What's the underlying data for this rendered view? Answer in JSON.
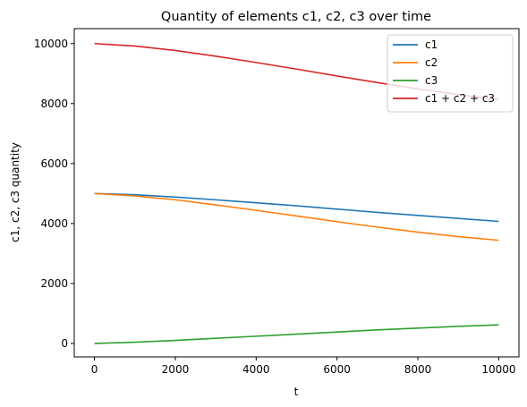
{
  "chart_data": {
    "type": "line",
    "title": "Quantity of elements c1, c2, c3 over time",
    "xlabel": "t",
    "ylabel": "c1, c2, c3 quantity",
    "xlim": [
      -500,
      10500
    ],
    "ylim": [
      -450,
      10500
    ],
    "xticks": [
      0,
      2000,
      4000,
      6000,
      8000,
      10000
    ],
    "yticks": [
      0,
      2000,
      4000,
      6000,
      8000,
      10000
    ],
    "grid": false,
    "legend_position": "top-right",
    "x": [
      0,
      1000,
      2000,
      3000,
      4000,
      5000,
      6000,
      7000,
      8000,
      9000,
      10000
    ],
    "series": [
      {
        "name": "c1",
        "color": "#1f77b4",
        "values": [
          5000,
          4960,
          4880,
          4790,
          4690,
          4590,
          4480,
          4370,
          4270,
          4170,
          4070
        ]
      },
      {
        "name": "c2",
        "color": "#ff7f0e",
        "values": [
          5000,
          4920,
          4790,
          4620,
          4440,
          4250,
          4060,
          3880,
          3710,
          3560,
          3440
        ]
      },
      {
        "name": "c3",
        "color": "#2ca02c",
        "values": [
          0,
          40,
          100,
          170,
          240,
          310,
          380,
          450,
          510,
          570,
          620
        ]
      },
      {
        "name": "c1 + c2 + c3",
        "color": "#d62728",
        "values": [
          10000,
          9920,
          9770,
          9580,
          9370,
          9150,
          8920,
          8700,
          8490,
          8300,
          8130
        ]
      }
    ]
  }
}
